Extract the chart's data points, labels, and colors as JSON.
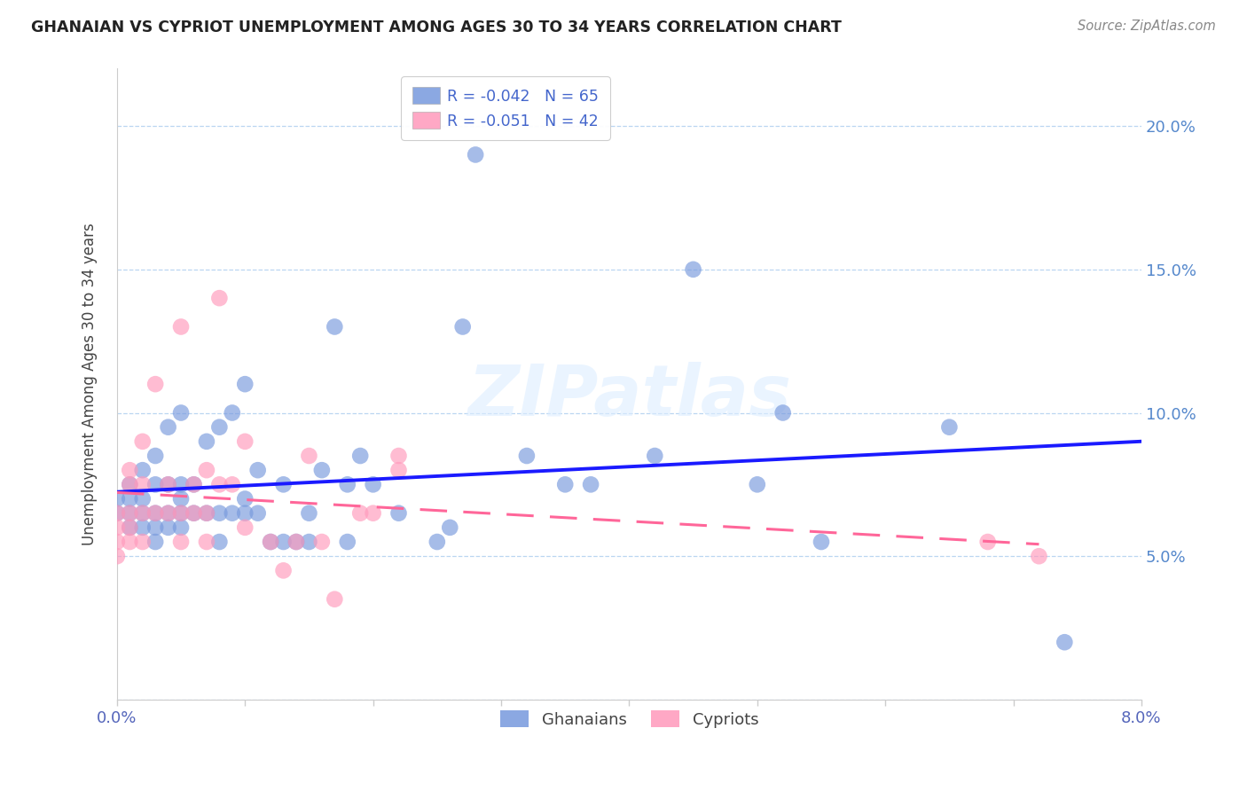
{
  "title": "GHANAIAN VS CYPRIOT UNEMPLOYMENT AMONG AGES 30 TO 34 YEARS CORRELATION CHART",
  "source": "Source: ZipAtlas.com",
  "ylabel": "Unemployment Among Ages 30 to 34 years",
  "xlim": [
    0.0,
    0.08
  ],
  "ylim": [
    0.0,
    0.22
  ],
  "xticks": [
    0.0,
    0.01,
    0.02,
    0.03,
    0.04,
    0.05,
    0.06,
    0.07,
    0.08
  ],
  "xticklabels": [
    "0.0%",
    "",
    "",
    "",
    "",
    "",
    "",
    "",
    "8.0%"
  ],
  "yticks": [
    0.0,
    0.05,
    0.1,
    0.15,
    0.2
  ],
  "yticklabels_right": [
    "",
    "5.0%",
    "10.0%",
    "15.0%",
    "20.0%"
  ],
  "ghanaian_label": "R = -0.042   N = 65",
  "cypriot_label": "R = -0.051   N = 42",
  "ghanaian_color": "#7799dd",
  "cypriot_color": "#ff99bb",
  "trend_ghanaian_color": "#1a1aff",
  "trend_cypriot_color": "#ff6699",
  "watermark": "ZIPatlas",
  "legend_bottom_ghanaians": "Ghanaians",
  "legend_bottom_cypriots": "Cypriots",
  "ghanaian_x": [
    0.0,
    0.0,
    0.001,
    0.001,
    0.001,
    0.001,
    0.002,
    0.002,
    0.002,
    0.002,
    0.003,
    0.003,
    0.003,
    0.003,
    0.003,
    0.004,
    0.004,
    0.004,
    0.004,
    0.005,
    0.005,
    0.005,
    0.005,
    0.005,
    0.006,
    0.006,
    0.007,
    0.007,
    0.008,
    0.008,
    0.008,
    0.009,
    0.009,
    0.01,
    0.01,
    0.01,
    0.011,
    0.011,
    0.012,
    0.013,
    0.013,
    0.014,
    0.015,
    0.015,
    0.016,
    0.017,
    0.018,
    0.018,
    0.019,
    0.02,
    0.022,
    0.025,
    0.026,
    0.027,
    0.028,
    0.032,
    0.035,
    0.037,
    0.042,
    0.045,
    0.05,
    0.052,
    0.055,
    0.065,
    0.074
  ],
  "ghanaian_y": [
    0.065,
    0.07,
    0.06,
    0.065,
    0.07,
    0.075,
    0.06,
    0.065,
    0.07,
    0.08,
    0.055,
    0.06,
    0.065,
    0.075,
    0.085,
    0.06,
    0.065,
    0.075,
    0.095,
    0.06,
    0.065,
    0.07,
    0.075,
    0.1,
    0.065,
    0.075,
    0.065,
    0.09,
    0.055,
    0.065,
    0.095,
    0.065,
    0.1,
    0.065,
    0.07,
    0.11,
    0.065,
    0.08,
    0.055,
    0.055,
    0.075,
    0.055,
    0.055,
    0.065,
    0.08,
    0.13,
    0.055,
    0.075,
    0.085,
    0.075,
    0.065,
    0.055,
    0.06,
    0.13,
    0.19,
    0.085,
    0.075,
    0.075,
    0.085,
    0.15,
    0.075,
    0.1,
    0.055,
    0.095,
    0.02
  ],
  "cypriot_x": [
    0.0,
    0.0,
    0.0,
    0.0,
    0.001,
    0.001,
    0.001,
    0.001,
    0.001,
    0.002,
    0.002,
    0.002,
    0.002,
    0.003,
    0.003,
    0.004,
    0.004,
    0.005,
    0.005,
    0.005,
    0.006,
    0.006,
    0.007,
    0.007,
    0.007,
    0.008,
    0.008,
    0.009,
    0.01,
    0.01,
    0.012,
    0.013,
    0.014,
    0.015,
    0.016,
    0.017,
    0.019,
    0.02,
    0.022,
    0.022,
    0.068,
    0.072
  ],
  "cypriot_y": [
    0.05,
    0.055,
    0.06,
    0.065,
    0.055,
    0.06,
    0.065,
    0.075,
    0.08,
    0.055,
    0.065,
    0.075,
    0.09,
    0.065,
    0.11,
    0.065,
    0.075,
    0.055,
    0.065,
    0.13,
    0.065,
    0.075,
    0.055,
    0.065,
    0.08,
    0.075,
    0.14,
    0.075,
    0.06,
    0.09,
    0.055,
    0.045,
    0.055,
    0.085,
    0.055,
    0.035,
    0.065,
    0.065,
    0.085,
    0.08,
    0.055,
    0.05
  ]
}
